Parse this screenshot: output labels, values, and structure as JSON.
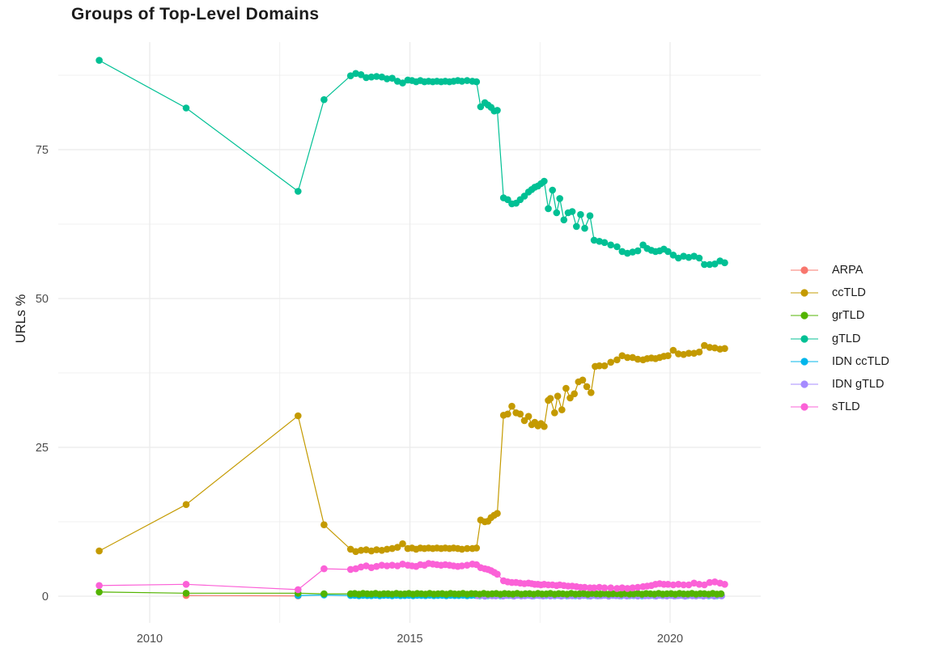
{
  "chart_data": {
    "type": "line",
    "title": "Groups of Top-Level Domains",
    "xlabel": "",
    "ylabel": "URLs %",
    "legend_position": "right",
    "grid": true,
    "grid_color": "#ebebeb",
    "tick_label_color": "#4d4d4d",
    "text_color": "#1c1c1c",
    "background_color": "#ffffff",
    "x_range": [
      2008.25,
      2021.75
    ],
    "y_range": [
      -4.5,
      92.7
    ],
    "x_ticks": [
      2010,
      2015,
      2020
    ],
    "x_tick_labels": [
      "2010",
      "2015",
      "2020"
    ],
    "x_minor_ticks": [
      2012.5,
      2017.5
    ],
    "y_ticks": [
      0,
      25,
      50,
      75
    ],
    "y_tick_labels": [
      "0",
      "25",
      "50",
      "75"
    ],
    "y_minor_ticks": [
      12.5,
      37.5,
      62.5,
      87.5
    ],
    "series": [
      {
        "name": "ARPA",
        "color": "#F8766D",
        "draw_index": 0,
        "points": [
          [
            2010.7,
            0.12
          ],
          [
            2012.85,
            0.06
          ]
        ]
      },
      {
        "name": "ccTLD",
        "color": "#C49A00",
        "draw_index": 4,
        "points": [
          [
            2009.03,
            7.6
          ],
          [
            2010.7,
            15.4
          ],
          [
            2012.85,
            30.3
          ],
          [
            2013.35,
            12.0
          ],
          [
            2013.86,
            7.9
          ],
          [
            2013.96,
            7.5
          ],
          [
            2014.06,
            7.7
          ],
          [
            2014.16,
            7.8
          ],
          [
            2014.26,
            7.6
          ],
          [
            2014.36,
            7.8
          ],
          [
            2014.46,
            7.7
          ],
          [
            2014.56,
            7.9
          ],
          [
            2014.66,
            8.0
          ],
          [
            2014.76,
            8.2
          ],
          [
            2014.86,
            8.8
          ],
          [
            2014.96,
            8.0
          ],
          [
            2015.04,
            8.1
          ],
          [
            2015.12,
            7.9
          ],
          [
            2015.2,
            8.1
          ],
          [
            2015.28,
            8.0
          ],
          [
            2015.36,
            8.1
          ],
          [
            2015.44,
            8.0
          ],
          [
            2015.52,
            8.1
          ],
          [
            2015.6,
            8.0
          ],
          [
            2015.68,
            8.1
          ],
          [
            2015.76,
            8.0
          ],
          [
            2015.84,
            8.1
          ],
          [
            2015.92,
            8.0
          ],
          [
            2016.0,
            7.9
          ],
          [
            2016.1,
            8.0
          ],
          [
            2016.2,
            8.0
          ],
          [
            2016.28,
            8.1
          ],
          [
            2016.36,
            12.8
          ],
          [
            2016.44,
            12.5
          ],
          [
            2016.5,
            12.6
          ],
          [
            2016.56,
            13.2
          ],
          [
            2016.62,
            13.6
          ],
          [
            2016.68,
            13.9
          ],
          [
            2016.8,
            30.4
          ],
          [
            2016.88,
            30.6
          ],
          [
            2016.96,
            31.9
          ],
          [
            2017.04,
            30.8
          ],
          [
            2017.12,
            30.6
          ],
          [
            2017.2,
            29.5
          ],
          [
            2017.28,
            30.2
          ],
          [
            2017.34,
            28.8
          ],
          [
            2017.4,
            29.2
          ],
          [
            2017.46,
            28.6
          ],
          [
            2017.52,
            29.0
          ],
          [
            2017.58,
            28.5
          ],
          [
            2017.66,
            32.9
          ],
          [
            2017.7,
            33.2
          ],
          [
            2017.78,
            30.8
          ],
          [
            2017.84,
            33.6
          ],
          [
            2017.92,
            31.3
          ],
          [
            2018.0,
            34.9
          ],
          [
            2018.08,
            33.3
          ],
          [
            2018.16,
            34.0
          ],
          [
            2018.24,
            36.0
          ],
          [
            2018.32,
            36.3
          ],
          [
            2018.4,
            35.2
          ],
          [
            2018.48,
            34.2
          ],
          [
            2018.56,
            38.6
          ],
          [
            2018.64,
            38.7
          ],
          [
            2018.74,
            38.7
          ],
          [
            2018.86,
            39.3
          ],
          [
            2018.98,
            39.7
          ],
          [
            2019.08,
            40.4
          ],
          [
            2019.18,
            40.1
          ],
          [
            2019.28,
            40.1
          ],
          [
            2019.38,
            39.8
          ],
          [
            2019.48,
            39.7
          ],
          [
            2019.56,
            39.9
          ],
          [
            2019.64,
            40.0
          ],
          [
            2019.72,
            39.9
          ],
          [
            2019.8,
            40.1
          ],
          [
            2019.88,
            40.3
          ],
          [
            2019.96,
            40.4
          ],
          [
            2020.06,
            41.3
          ],
          [
            2020.16,
            40.7
          ],
          [
            2020.26,
            40.6
          ],
          [
            2020.36,
            40.8
          ],
          [
            2020.46,
            40.8
          ],
          [
            2020.56,
            41.0
          ],
          [
            2020.66,
            42.1
          ],
          [
            2020.76,
            41.8
          ],
          [
            2020.86,
            41.7
          ],
          [
            2020.96,
            41.5
          ],
          [
            2021.05,
            41.6
          ]
        ]
      },
      {
        "name": "grTLD",
        "color": "#53B400",
        "draw_index": 3,
        "points": [
          [
            2009.03,
            0.7
          ],
          [
            2010.7,
            0.5
          ],
          [
            2012.85,
            0.5
          ],
          [
            2013.35,
            0.4
          ]
        ],
        "flat": {
          "from": 2013.86,
          "to": 2021.05,
          "step": 0.08,
          "value": 0.4,
          "jitter": 0.07
        }
      },
      {
        "name": "gTLD",
        "color": "#00C094",
        "draw_index": 5,
        "points": [
          [
            2009.03,
            90.0
          ],
          [
            2010.7,
            82.0
          ],
          [
            2012.85,
            68.0
          ],
          [
            2013.35,
            83.4
          ],
          [
            2013.86,
            87.4
          ],
          [
            2013.96,
            87.8
          ],
          [
            2014.06,
            87.6
          ],
          [
            2014.16,
            87.1
          ],
          [
            2014.26,
            87.2
          ],
          [
            2014.36,
            87.3
          ],
          [
            2014.46,
            87.2
          ],
          [
            2014.56,
            86.9
          ],
          [
            2014.66,
            87.0
          ],
          [
            2014.76,
            86.5
          ],
          [
            2014.86,
            86.2
          ],
          [
            2014.96,
            86.7
          ],
          [
            2015.04,
            86.6
          ],
          [
            2015.12,
            86.4
          ],
          [
            2015.2,
            86.6
          ],
          [
            2015.28,
            86.4
          ],
          [
            2015.36,
            86.5
          ],
          [
            2015.44,
            86.4
          ],
          [
            2015.52,
            86.5
          ],
          [
            2015.6,
            86.4
          ],
          [
            2015.68,
            86.5
          ],
          [
            2015.76,
            86.4
          ],
          [
            2015.84,
            86.5
          ],
          [
            2015.92,
            86.6
          ],
          [
            2016.0,
            86.5
          ],
          [
            2016.1,
            86.6
          ],
          [
            2016.2,
            86.5
          ],
          [
            2016.28,
            86.4
          ],
          [
            2016.36,
            82.2
          ],
          [
            2016.44,
            82.9
          ],
          [
            2016.5,
            82.5
          ],
          [
            2016.56,
            82.1
          ],
          [
            2016.62,
            81.5
          ],
          [
            2016.68,
            81.6
          ],
          [
            2016.8,
            66.9
          ],
          [
            2016.88,
            66.6
          ],
          [
            2016.96,
            65.9
          ],
          [
            2017.04,
            66.0
          ],
          [
            2017.12,
            66.6
          ],
          [
            2017.2,
            67.2
          ],
          [
            2017.28,
            67.9
          ],
          [
            2017.34,
            68.3
          ],
          [
            2017.4,
            68.7
          ],
          [
            2017.46,
            68.9
          ],
          [
            2017.52,
            69.3
          ],
          [
            2017.58,
            69.7
          ],
          [
            2017.66,
            65.1
          ],
          [
            2017.74,
            68.2
          ],
          [
            2017.82,
            64.4
          ],
          [
            2017.88,
            66.8
          ],
          [
            2017.96,
            63.2
          ],
          [
            2018.04,
            64.4
          ],
          [
            2018.12,
            64.6
          ],
          [
            2018.2,
            62.1
          ],
          [
            2018.28,
            64.1
          ],
          [
            2018.36,
            61.8
          ],
          [
            2018.46,
            63.9
          ],
          [
            2018.54,
            59.8
          ],
          [
            2018.64,
            59.6
          ],
          [
            2018.74,
            59.4
          ],
          [
            2018.86,
            59.0
          ],
          [
            2018.98,
            58.7
          ],
          [
            2019.08,
            57.9
          ],
          [
            2019.18,
            57.6
          ],
          [
            2019.28,
            57.8
          ],
          [
            2019.38,
            58.0
          ],
          [
            2019.48,
            59.0
          ],
          [
            2019.56,
            58.4
          ],
          [
            2019.64,
            58.1
          ],
          [
            2019.72,
            57.9
          ],
          [
            2019.8,
            58.0
          ],
          [
            2019.88,
            58.3
          ],
          [
            2019.96,
            57.9
          ],
          [
            2020.06,
            57.3
          ],
          [
            2020.16,
            56.8
          ],
          [
            2020.26,
            57.1
          ],
          [
            2020.36,
            56.9
          ],
          [
            2020.46,
            57.1
          ],
          [
            2020.56,
            56.8
          ],
          [
            2020.66,
            55.7
          ],
          [
            2020.76,
            55.7
          ],
          [
            2020.86,
            55.8
          ],
          [
            2020.96,
            56.3
          ],
          [
            2021.05,
            56.0
          ]
        ]
      },
      {
        "name": "IDN ccTLD",
        "color": "#00B6EB",
        "draw_index": 1,
        "points": [
          [
            2012.85,
            0.12
          ],
          [
            2013.35,
            0.2
          ]
        ],
        "flat": {
          "from": 2013.86,
          "to": 2021.05,
          "step": 0.08,
          "value": 0.12,
          "jitter": 0.04
        }
      },
      {
        "name": "IDN gTLD",
        "color": "#A58AFF",
        "draw_index": 2,
        "points": [],
        "flat": {
          "from": 2016.3,
          "to": 2021.05,
          "step": 0.07,
          "value": 0.1,
          "jitter": 0.08
        }
      },
      {
        "name": "sTLD",
        "color": "#FB61D7",
        "draw_index": 6,
        "points": [
          [
            2009.03,
            1.8
          ],
          [
            2010.7,
            2.0
          ],
          [
            2012.85,
            1.1
          ],
          [
            2013.35,
            4.6
          ],
          [
            2013.86,
            4.5
          ],
          [
            2013.96,
            4.6
          ],
          [
            2014.06,
            4.9
          ],
          [
            2014.16,
            5.1
          ],
          [
            2014.26,
            4.8
          ],
          [
            2014.36,
            5.0
          ],
          [
            2014.46,
            5.2
          ],
          [
            2014.56,
            5.1
          ],
          [
            2014.66,
            5.2
          ],
          [
            2014.76,
            5.1
          ],
          [
            2014.86,
            5.4
          ],
          [
            2014.96,
            5.2
          ],
          [
            2015.04,
            5.1
          ],
          [
            2015.12,
            5.0
          ],
          [
            2015.2,
            5.3
          ],
          [
            2015.28,
            5.2
          ],
          [
            2015.36,
            5.5
          ],
          [
            2015.44,
            5.4
          ],
          [
            2015.52,
            5.3
          ],
          [
            2015.6,
            5.2
          ],
          [
            2015.68,
            5.3
          ],
          [
            2015.76,
            5.2
          ],
          [
            2015.84,
            5.1
          ],
          [
            2015.92,
            5.0
          ],
          [
            2016.0,
            5.1
          ],
          [
            2016.1,
            5.2
          ],
          [
            2016.2,
            5.4
          ],
          [
            2016.28,
            5.3
          ],
          [
            2016.36,
            4.8
          ],
          [
            2016.44,
            4.6
          ],
          [
            2016.5,
            4.5
          ],
          [
            2016.56,
            4.3
          ],
          [
            2016.62,
            4.0
          ],
          [
            2016.68,
            3.7
          ],
          [
            2016.8,
            2.6
          ],
          [
            2016.88,
            2.4
          ],
          [
            2016.96,
            2.3
          ],
          [
            2017.04,
            2.3
          ],
          [
            2017.12,
            2.2
          ],
          [
            2017.2,
            2.1
          ],
          [
            2017.28,
            2.2
          ],
          [
            2017.34,
            2.1
          ],
          [
            2017.4,
            2.0
          ],
          [
            2017.46,
            2.0
          ],
          [
            2017.52,
            1.9
          ],
          [
            2017.58,
            2.0
          ],
          [
            2017.66,
            1.9
          ],
          [
            2017.74,
            1.9
          ],
          [
            2017.82,
            1.8
          ],
          [
            2017.88,
            1.9
          ],
          [
            2017.96,
            1.8
          ],
          [
            2018.04,
            1.7
          ],
          [
            2018.12,
            1.7
          ],
          [
            2018.2,
            1.6
          ],
          [
            2018.28,
            1.5
          ],
          [
            2018.36,
            1.5
          ],
          [
            2018.46,
            1.4
          ],
          [
            2018.54,
            1.4
          ],
          [
            2018.64,
            1.5
          ],
          [
            2018.74,
            1.4
          ],
          [
            2018.86,
            1.4
          ],
          [
            2018.98,
            1.3
          ],
          [
            2019.08,
            1.4
          ],
          [
            2019.18,
            1.3
          ],
          [
            2019.28,
            1.4
          ],
          [
            2019.38,
            1.5
          ],
          [
            2019.48,
            1.6
          ],
          [
            2019.56,
            1.7
          ],
          [
            2019.64,
            1.8
          ],
          [
            2019.72,
            2.0
          ],
          [
            2019.8,
            2.1
          ],
          [
            2019.88,
            2.0
          ],
          [
            2019.96,
            2.0
          ],
          [
            2020.06,
            1.9
          ],
          [
            2020.16,
            2.0
          ],
          [
            2020.26,
            1.9
          ],
          [
            2020.36,
            1.9
          ],
          [
            2020.46,
            2.2
          ],
          [
            2020.56,
            2.0
          ],
          [
            2020.66,
            1.9
          ],
          [
            2020.76,
            2.3
          ],
          [
            2020.86,
            2.4
          ],
          [
            2020.96,
            2.2
          ],
          [
            2021.05,
            2.0
          ]
        ]
      }
    ]
  }
}
